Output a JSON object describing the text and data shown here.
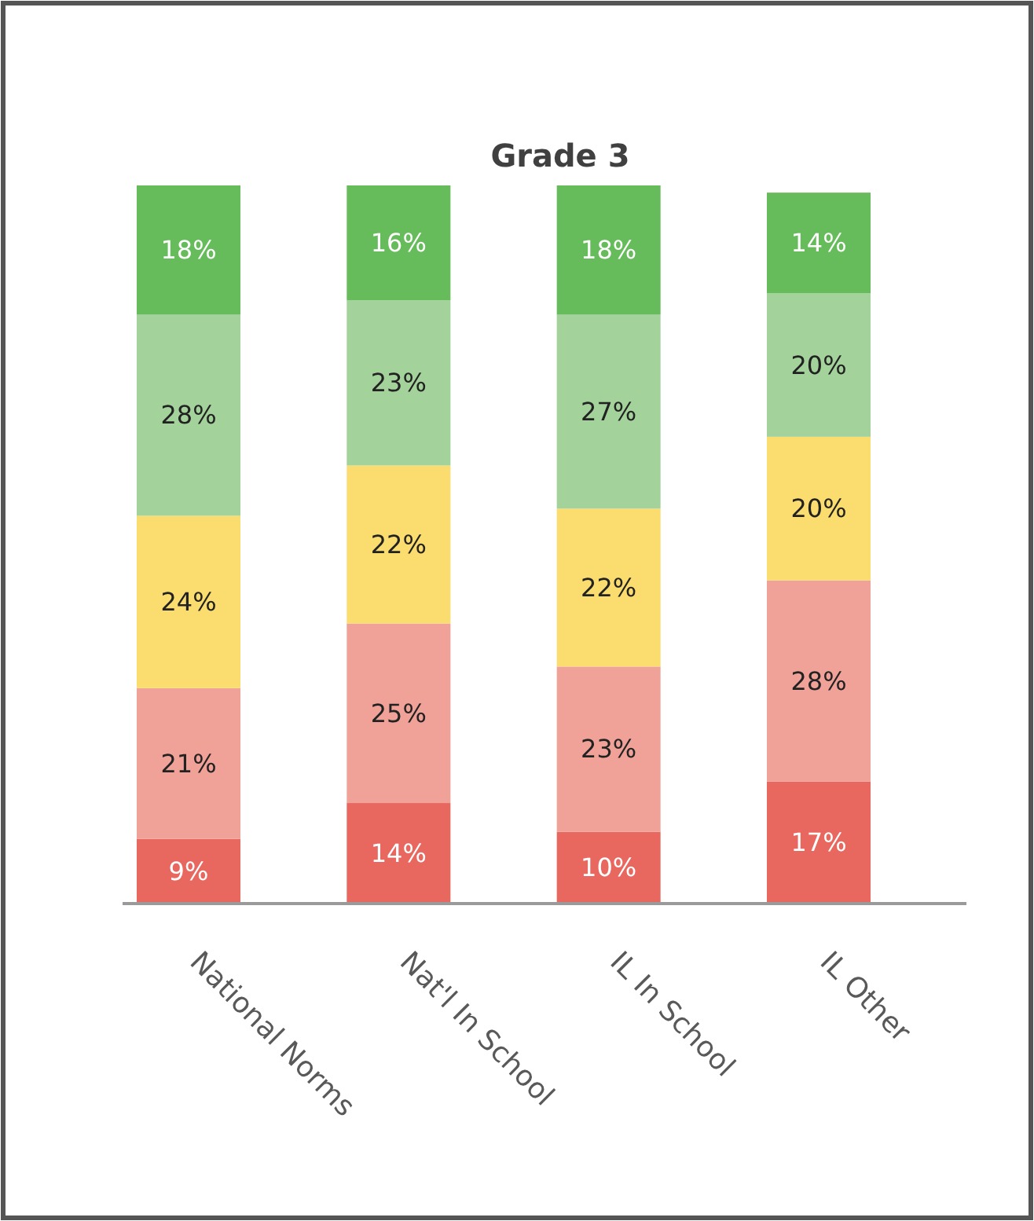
{
  "chart_data": {
    "type": "bar",
    "title": "Grade 3",
    "stacked": true,
    "tick_labels": "x",
    "ylim": [
      0,
      100
    ],
    "categories": [
      "National Norms",
      "Nat'l In School",
      "IL In School",
      "IL Other"
    ],
    "series": [
      {
        "color": "#e8675f",
        "values": [
          9,
          14,
          10,
          17
        ],
        "value_labels": [
          "9%",
          "14%",
          "10%",
          "17%"
        ]
      },
      {
        "color": "#f0a198",
        "values": [
          21,
          25,
          23,
          28
        ],
        "value_labels": [
          "21%",
          "25%",
          "23%",
          "28%"
        ]
      },
      {
        "color": "#fbdc6f",
        "values": [
          24,
          22,
          22,
          20
        ],
        "value_labels": [
          "24%",
          "22%",
          "22%",
          "20%"
        ]
      },
      {
        "color": "#a3d39b",
        "values": [
          28,
          23,
          27,
          20
        ],
        "value_labels": [
          "28%",
          "23%",
          "27%",
          "20%"
        ]
      },
      {
        "color": "#66bb5a",
        "values": [
          18,
          16,
          18,
          14
        ],
        "value_labels": [
          "18%",
          "16%",
          "18%",
          "14%"
        ]
      }
    ]
  }
}
